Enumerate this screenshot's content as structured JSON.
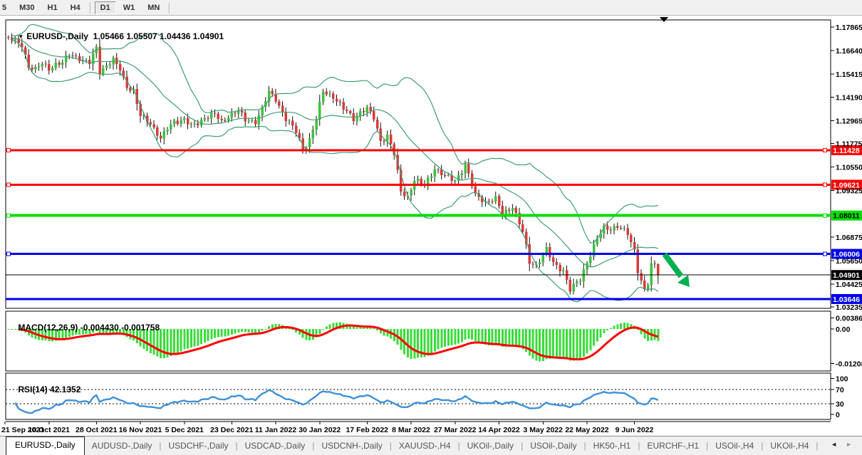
{
  "toolbar": {
    "timeframes": [
      "5",
      "M30",
      "H1",
      "H4",
      "D1",
      "W1",
      "MN"
    ],
    "active": "D1",
    "group_breaks_after": [
      "H4",
      "MN"
    ]
  },
  "window": {
    "chart_marker_icon": "down-triangle",
    "legend_symbol": "EURUSD-,Daily",
    "legend_ohlc": "1.05466 1.05507 1.04436 1.04901"
  },
  "main_panel": {
    "price_ticks": [
      1.17865,
      1.1664,
      1.15415,
      1.1419,
      1.12965,
      1.11775,
      1.1055,
      1.09325,
      1.06875,
      1.0565,
      1.04425,
      1.03235
    ],
    "levels": [
      {
        "price": 1.11428,
        "color": "#FF0000",
        "width": 3,
        "badge_bg": "#FF0000",
        "badge_fg": "#FFFFFF",
        "handles": true
      },
      {
        "price": 1.09621,
        "color": "#FF0000",
        "width": 3,
        "badge_bg": "#FF0000",
        "badge_fg": "#FFFFFF",
        "handles": true
      },
      {
        "price": 1.08011,
        "color": "#00DD00",
        "width": 4,
        "badge_bg": "#00DD00",
        "badge_fg": "#000000",
        "handles": true
      },
      {
        "price": 1.06006,
        "color": "#0000EE",
        "width": 3,
        "badge_bg": "#0000EE",
        "badge_fg": "#FFFFFF",
        "handles": true
      },
      {
        "price": 1.04901,
        "color": "#000000",
        "width": 1,
        "badge_bg": "#000000",
        "badge_fg": "#FFFFFF",
        "handles": false
      },
      {
        "price": 1.03646,
        "color": "#0000EE",
        "width": 3,
        "badge_bg": "#0000EE",
        "badge_fg": "#FFFFFF",
        "handles": false
      }
    ],
    "colors": {
      "candle_up": "#3CC23C",
      "candle_down": "#DA3A3A",
      "wick": "#111111",
      "bands": "#3E9E72",
      "arrow": "#00B050"
    }
  },
  "macd_panel": {
    "label": "MACD(12,26,9)",
    "values_text": "-0.004430 -0.001758",
    "axis_labels": [
      "0.003865",
      "0.00",
      "-0.01208"
    ],
    "axis_values": [
      0.003865,
      0,
      -0.01208
    ],
    "colors": {
      "histogram": "#3ADC3A",
      "signal": "#FF0000"
    }
  },
  "rsi_panel": {
    "label": "RSI(14)",
    "value_text": "42.1352",
    "axis_labels": [
      "100",
      "70",
      "30",
      "0"
    ],
    "axis_values": [
      100,
      70,
      30,
      0
    ],
    "dashed_levels": [
      70,
      30
    ],
    "color": "#3E90D8"
  },
  "date_axis": {
    "ticks": [
      [
        0,
        "21 Sep 2021"
      ],
      [
        13,
        "10 Oct 2021"
      ],
      [
        27,
        "28 Oct 2021"
      ],
      [
        40,
        "16 Nov 2021"
      ],
      [
        53,
        "5 Dec 2021"
      ],
      [
        67,
        "23 Dec 2021"
      ],
      [
        80,
        "11 Jan 2022"
      ],
      [
        93,
        "30 Jan 2022"
      ],
      [
        107,
        "17 Feb 2022"
      ],
      [
        120,
        "8 Mar 2022"
      ],
      [
        133,
        "27 Mar 2022"
      ],
      [
        146,
        "14 Apr 2022"
      ],
      [
        159,
        "3 May 2022"
      ],
      [
        172,
        "22 May 2022"
      ],
      [
        186,
        "9 Jun 2022"
      ]
    ]
  },
  "tabs": {
    "items": [
      "EURUSD-,Daily",
      "AUDUSD-,Daily",
      "USDCHF-,Daily",
      "USDCAD-,Daily",
      "USDCNH-,Daily",
      "XAUUSD-,H4",
      "UKOil-,Daily",
      "USOil-,Daily",
      "HK50-,H1",
      "EURCHF-,H1",
      "USOil-,H4",
      "UKOil-,H4"
    ],
    "active": "EURUSD-,Daily",
    "scroll_left_icon": "left-arrow",
    "scroll_right_icon": "right-arrow"
  },
  "chart_data": {
    "type": "candlestick",
    "symbol": "EURUSD-",
    "timeframe": "Daily",
    "bars": 194,
    "ohlc_last": {
      "open": 1.05466,
      "high": 1.05507,
      "low": 1.04436,
      "close": 1.04901
    },
    "close_anchors": [
      [
        0,
        1.1727
      ],
      [
        2,
        1.1722
      ],
      [
        5,
        1.1695
      ],
      [
        7,
        1.158
      ],
      [
        9,
        1.156
      ],
      [
        11,
        1.1599
      ],
      [
        13,
        1.1573
      ],
      [
        15,
        1.159
      ],
      [
        17,
        1.1596
      ],
      [
        19,
        1.165
      ],
      [
        21,
        1.1633
      ],
      [
        23,
        1.161
      ],
      [
        25,
        1.1597
      ],
      [
        27,
        1.1682
      ],
      [
        28,
        1.1558
      ],
      [
        30,
        1.1585
      ],
      [
        32,
        1.161
      ],
      [
        34,
        1.1567
      ],
      [
        36,
        1.1479
      ],
      [
        38,
        1.145
      ],
      [
        40,
        1.132
      ],
      [
        43,
        1.1288
      ],
      [
        46,
        1.12
      ],
      [
        48,
        1.1255
      ],
      [
        50,
        1.1294
      ],
      [
        53,
        1.1304
      ],
      [
        55,
        1.1266
      ],
      [
        57,
        1.1285
      ],
      [
        59,
        1.1316
      ],
      [
        62,
        1.133
      ],
      [
        64,
        1.1287
      ],
      [
        66,
        1.1325
      ],
      [
        69,
        1.1349
      ],
      [
        71,
        1.1297
      ],
      [
        74,
        1.1295
      ],
      [
        76,
        1.136
      ],
      [
        78,
        1.1444
      ],
      [
        80,
        1.1411
      ],
      [
        83,
        1.1308
      ],
      [
        86,
        1.1239
      ],
      [
        88,
        1.1148
      ],
      [
        90,
        1.12
      ],
      [
        92,
        1.1304
      ],
      [
        94,
        1.1451
      ],
      [
        97,
        1.1426
      ],
      [
        100,
        1.1357
      ],
      [
        103,
        1.1309
      ],
      [
        105,
        1.1344
      ],
      [
        107,
        1.136
      ],
      [
        109,
        1.1309
      ],
      [
        111,
        1.1193
      ],
      [
        113,
        1.1219
      ],
      [
        115,
        1.1121
      ],
      [
        117,
        1.0926
      ],
      [
        119,
        1.0902
      ],
      [
        121,
        1.0989
      ],
      [
        124,
        1.0954
      ],
      [
        127,
        1.1051
      ],
      [
        130,
        1.1005
      ],
      [
        133,
        1.0983
      ],
      [
        136,
        1.1067
      ],
      [
        139,
        1.0905
      ],
      [
        142,
        1.0876
      ],
      [
        145,
        1.0887
      ],
      [
        147,
        1.0808
      ],
      [
        150,
        1.0852
      ],
      [
        153,
        1.0713
      ],
      [
        155,
        1.0556
      ],
      [
        157,
        1.0545
      ],
      [
        160,
        1.0622
      ],
      [
        162,
        1.0549
      ],
      [
        165,
        1.0515
      ],
      [
        167,
        1.0412
      ],
      [
        170,
        1.0465
      ],
      [
        172,
        1.0561
      ],
      [
        175,
        1.068
      ],
      [
        177,
        1.0733
      ],
      [
        179,
        1.0734
      ],
      [
        181,
        1.0749
      ],
      [
        184,
        1.0702
      ],
      [
        186,
        1.0617
      ],
      [
        187,
        1.0518
      ],
      [
        189,
        1.0411
      ],
      [
        190,
        1.0446
      ],
      [
        191,
        1.0551
      ],
      [
        192,
        1.05466
      ],
      [
        193,
        1.04901
      ]
    ],
    "indicators": [
      {
        "name": "Bollinger Bands",
        "period": 20,
        "deviation": 2
      },
      {
        "name": "MACD",
        "fast": 12,
        "slow": 26,
        "signal_period": 9,
        "macd_value": -0.00443,
        "signal_value": -0.001758
      },
      {
        "name": "RSI",
        "period": 14,
        "value": 42.1352
      }
    ],
    "horizontal_levels": [
      1.11428,
      1.09621,
      1.08011,
      1.06006,
      1.04901,
      1.03646
    ],
    "trend_annotation": {
      "shape": "arrow-down-right",
      "from_price": 1.0605,
      "to_price": 1.0435,
      "color": "#00B050"
    }
  }
}
